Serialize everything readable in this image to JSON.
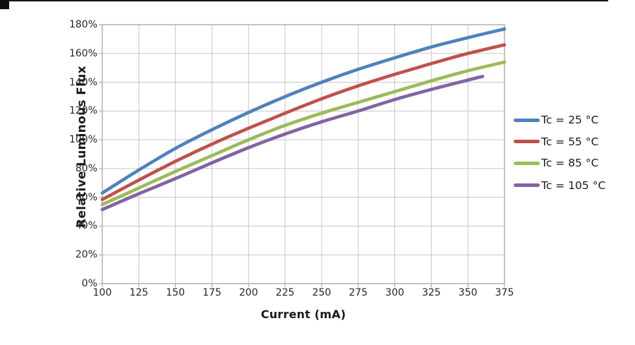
{
  "chart_data": {
    "type": "line",
    "title": "",
    "xlabel": "Current (mA)",
    "ylabel": "Relative Luminous Flux",
    "xlim": [
      100,
      375
    ],
    "ylim": [
      0,
      180
    ],
    "x_ticks": [
      100,
      125,
      150,
      175,
      200,
      225,
      250,
      275,
      300,
      325,
      350,
      375
    ],
    "y_ticks": [
      0,
      20,
      40,
      60,
      80,
      100,
      120,
      140,
      160,
      180
    ],
    "y_tick_suffix": "%",
    "grid": "both",
    "legend_position": "right",
    "series": [
      {
        "name": "Tc = 25 °C",
        "color": "#4F81BD",
        "x": [
          100,
          125,
          150,
          175,
          200,
          225,
          250,
          275,
          300,
          325,
          350,
          375
        ],
        "y": [
          63,
          79,
          94,
          107,
          119,
          130,
          140,
          149,
          157,
          164.5,
          171,
          177
        ]
      },
      {
        "name": "Tc = 55 °C",
        "color": "#C0504D",
        "x": [
          100,
          125,
          150,
          175,
          200,
          225,
          250,
          275,
          300,
          325,
          350,
          375
        ],
        "y": [
          58.5,
          72,
          85,
          97,
          108,
          118.5,
          128.5,
          137.5,
          145.5,
          153,
          160,
          166
        ]
      },
      {
        "name": "Tc = 85 °C",
        "color": "#9BBB59",
        "x": [
          100,
          125,
          150,
          175,
          200,
          225,
          250,
          275,
          300,
          325,
          350,
          375
        ],
        "y": [
          55,
          66.5,
          78,
          89,
          100,
          110,
          118.5,
          126,
          133.5,
          141,
          148,
          154
        ]
      },
      {
        "name": "Tc = 105 °C",
        "color": "#8064A2",
        "x": [
          100,
          125,
          150,
          175,
          200,
          225,
          250,
          275,
          300,
          325,
          350,
          360
        ],
        "y": [
          51.5,
          62.5,
          73,
          84,
          94.5,
          104,
          112.5,
          120,
          128,
          135,
          141.5,
          144
        ]
      }
    ]
  }
}
